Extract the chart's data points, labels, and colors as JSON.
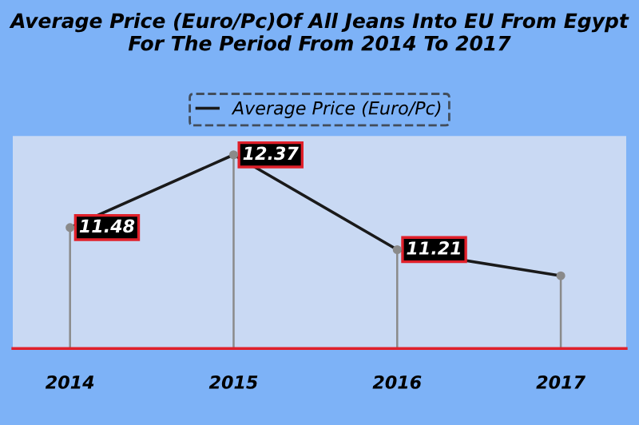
{
  "chart_data": {
    "type": "line",
    "title": "Average Price (Euro/Pc)Of All Jeans Into EU From Egypt For The Period From 2014 To 2017",
    "categories": [
      "2014",
      "2015",
      "2016",
      "2017"
    ],
    "series": [
      {
        "name": "Average Price (Euro/Pc)",
        "color": "#1a1a1a",
        "values": [
          11.48,
          12.37,
          11.21,
          10.89
        ],
        "value_labels": [
          "11.48",
          "12.37",
          "11.21",
          null
        ]
      },
      {
        "type": "lollipop",
        "color": "#8a8a8a",
        "marker": "circle",
        "values": [
          11.48,
          12.37,
          11.21,
          10.89
        ]
      }
    ],
    "ylim": [
      10,
      12.6
    ],
    "tick_labels": "x",
    "legend": "top"
  }
}
